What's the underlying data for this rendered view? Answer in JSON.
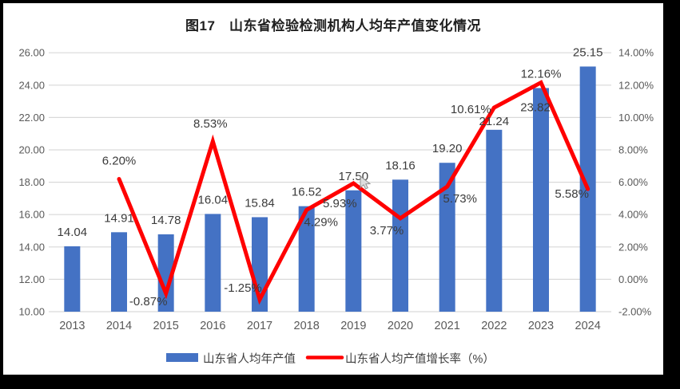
{
  "frame": {
    "border_color": "#000000",
    "background": "#ffffff"
  },
  "chart_data": {
    "type": "bar+line combo",
    "title": "图17　山东省检验检测机构人均年产值变化情况",
    "categories": [
      "2013",
      "2014",
      "2015",
      "2016",
      "2017",
      "2018",
      "2019",
      "2020",
      "2021",
      "2022",
      "2023",
      "2024"
    ],
    "series": [
      {
        "name": "山东省人均年产值",
        "type": "bar",
        "axis": "left",
        "color": "#4472C4",
        "values": [
          14.04,
          14.91,
          14.78,
          16.04,
          15.84,
          16.52,
          17.5,
          18.16,
          19.2,
          21.24,
          23.82,
          25.15
        ],
        "labels": [
          "14.04",
          "14.91",
          "14.78",
          "16.04",
          "15.84",
          "16.52",
          "17.50",
          "18.16",
          "19.20",
          "21.24",
          "23.82",
          "25.15"
        ]
      },
      {
        "name": "山东省人均产值增长率（%）",
        "type": "line",
        "axis": "right",
        "color": "#FF0000",
        "values": [
          null,
          6.2,
          -0.87,
          8.53,
          -1.25,
          4.29,
          5.93,
          3.77,
          5.73,
          10.61,
          12.16,
          5.58
        ],
        "labels": [
          null,
          "6.20%",
          "-0.87%",
          "8.53%",
          "-1.25%",
          "4.29%",
          "5.93%",
          "3.77%",
          "5.73%",
          "10.61%",
          "12.16%",
          "5.58%"
        ]
      }
    ],
    "left_axis": {
      "min": 10,
      "max": 26,
      "step": 2,
      "tick_labels": [
        "10.00",
        "12.00",
        "14.00",
        "16.00",
        "18.00",
        "20.00",
        "22.00",
        "24.00",
        "26.00"
      ]
    },
    "right_axis": {
      "min": -2,
      "max": 14,
      "step": 2,
      "tick_labels": [
        "-2.00%",
        "0.00%",
        "2.00%",
        "4.00%",
        "6.00%",
        "8.00%",
        "10.00%",
        "12.00%",
        "14.00%"
      ]
    },
    "grid": true,
    "legend_position": "bottom",
    "gridline_color": "#D9D9D9",
    "axis_text_color": "#595959",
    "data_label_color": "#3B3B3B"
  },
  "legend": {
    "bar_label": "山东省人均年产值",
    "line_label": "山东省人均产值增长率（%）"
  }
}
